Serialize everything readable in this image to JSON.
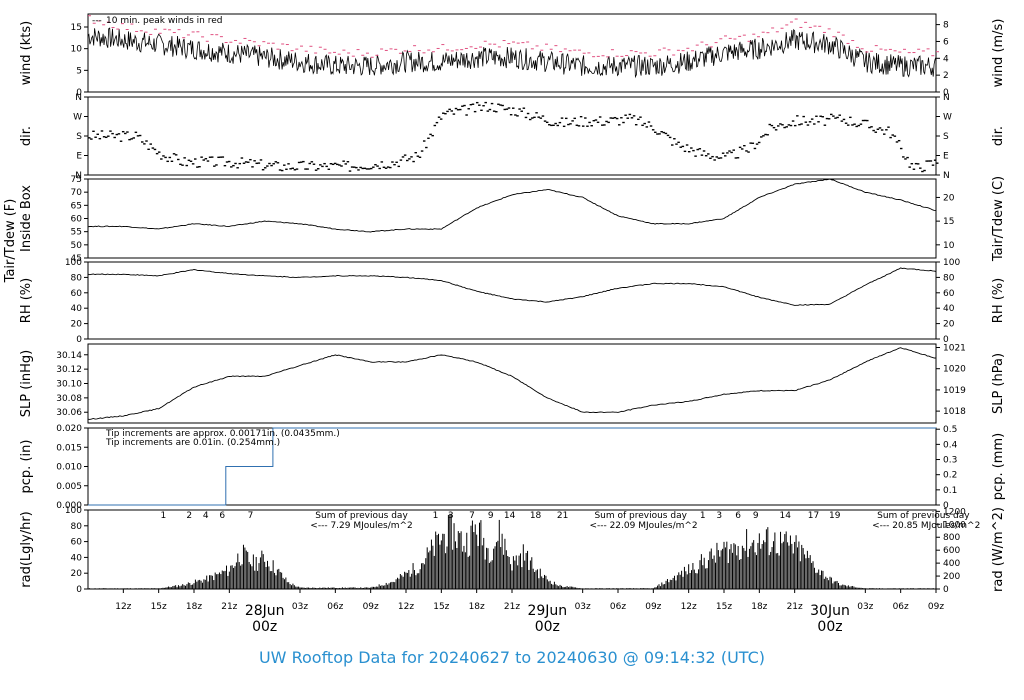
{
  "footer": {
    "title": "UW Rooftop Data for 20240627  to  20240630 @ 09:14:32  (UTC)"
  },
  "colors": {
    "wind": "#000000",
    "peak": "#e05080",
    "pcp_note1": "#d05070",
    "pcp_note2": "#2a90d0",
    "rad_note": "#9a30c8",
    "date_label": "#d05070",
    "footer": "#2a90d0",
    "pcp_line": "#3070b0"
  },
  "x_axis": {
    "tick_labels": [
      "12z",
      "15z",
      "18z",
      "21z",
      "03z",
      "06z",
      "09z",
      "12z",
      "15z",
      "18z",
      "21z",
      "03z",
      "06z",
      "09z",
      "12z",
      "15z",
      "18z",
      "21z",
      "03z",
      "06z",
      "09z"
    ],
    "tick_hours": [
      -9,
      -6,
      -3,
      0,
      6,
      9,
      12,
      15,
      18,
      21,
      24,
      30,
      33,
      36,
      39,
      42,
      45,
      48,
      54,
      57,
      60
    ],
    "day_labels": [
      {
        "date": "28Jun",
        "time": "00z",
        "hour": 3
      },
      {
        "date": "29Jun",
        "time": "00z",
        "hour": 27
      },
      {
        "date": "30Jun",
        "time": "00z",
        "hour": 51
      }
    ],
    "start_hour": -12,
    "end_hour": 60
  },
  "chart_data": [
    {
      "type": "line",
      "id": "wind",
      "ylabel_left": "wind (kts)",
      "ylabel_right": "wind (m/s)",
      "left_ticks": [
        "0",
        "5",
        "10",
        "15"
      ],
      "right_ticks": [
        "0",
        "2",
        "4",
        "6",
        "8"
      ],
      "ylim": [
        0,
        18
      ],
      "legend": "10 min. peak winds in red",
      "series": [
        {
          "name": "wind",
          "x": [
            -12,
            -9,
            -6,
            -3,
            0,
            3,
            6,
            9,
            12,
            15,
            18,
            21,
            24,
            27,
            30,
            33,
            36,
            39,
            42,
            45,
            48,
            51,
            54,
            57,
            60
          ],
          "y": [
            13,
            12,
            11,
            10,
            9,
            8,
            7,
            6,
            6,
            7,
            7,
            8,
            8,
            7,
            6,
            6,
            6,
            7,
            9,
            10,
            12,
            11,
            7,
            6,
            6
          ]
        },
        {
          "name": "peak",
          "x": [
            -12,
            -9,
            -6,
            -3,
            0,
            3,
            6,
            9,
            12,
            15,
            18,
            21,
            24,
            27,
            30,
            33,
            36,
            39,
            42,
            45,
            48,
            51,
            54,
            57,
            60
          ],
          "y": [
            17,
            15,
            14,
            13,
            12,
            11,
            10,
            9,
            9,
            10,
            10,
            11,
            11,
            10,
            9,
            9,
            9,
            10,
            12,
            13,
            16,
            14,
            10,
            9,
            9
          ]
        }
      ]
    },
    {
      "type": "scatter",
      "id": "dir",
      "ylabel_left": "dir.",
      "ylabel_right": "dir.",
      "left_ticks": [
        "N",
        "E",
        "S",
        "W",
        "N"
      ],
      "right_ticks": [
        "N",
        "E",
        "S",
        "W",
        "N"
      ],
      "ylim": [
        0,
        360
      ],
      "series": [
        {
          "name": "dir",
          "x": [
            -12,
            -10,
            -8,
            -6,
            -4,
            -2,
            0,
            2,
            4,
            6,
            8,
            10,
            12,
            14,
            16,
            18,
            20,
            22,
            24,
            26,
            28,
            30,
            32,
            34,
            36,
            38,
            40,
            42,
            44,
            46,
            48,
            50,
            52,
            54,
            56,
            58,
            60
          ],
          "y": [
            180,
            180,
            180,
            100,
            60,
            60,
            60,
            50,
            40,
            40,
            40,
            40,
            50,
            60,
            90,
            280,
            300,
            320,
            300,
            270,
            240,
            250,
            250,
            260,
            220,
            140,
            100,
            80,
            120,
            220,
            250,
            250,
            260,
            230,
            200,
            30,
            60
          ]
        }
      ]
    },
    {
      "type": "line",
      "id": "temp",
      "ylabel_left": "Tair/Tdew (F)",
      "ylabel_left2": "Inside Box",
      "ylabel_right": "Tair/Tdew (C)",
      "left_ticks": [
        "45",
        "50",
        "55",
        "60",
        "65",
        "70",
        "75"
      ],
      "right_ticks": [
        "10",
        "15",
        "20"
      ],
      "ylim": [
        45,
        75
      ],
      "series": [
        {
          "name": "Tair",
          "x": [
            -12,
            -9,
            -6,
            -3,
            0,
            3,
            6,
            9,
            12,
            15,
            18,
            21,
            24,
            27,
            30,
            33,
            36,
            39,
            42,
            45,
            48,
            51,
            54,
            57,
            60
          ],
          "y": [
            57,
            57,
            56,
            58,
            57,
            59,
            58,
            56,
            55,
            56,
            56,
            64,
            69,
            71,
            68,
            61,
            58,
            58,
            60,
            68,
            73,
            75,
            70,
            67,
            63
          ]
        }
      ]
    },
    {
      "type": "line",
      "id": "rh",
      "ylabel_left": "RH (%)",
      "ylabel_right": "RH (%)",
      "left_ticks": [
        "0",
        "20",
        "40",
        "60",
        "80",
        "100"
      ],
      "right_ticks": [
        "0",
        "20",
        "40",
        "60",
        "80",
        "100"
      ],
      "ylim": [
        0,
        100
      ],
      "series": [
        {
          "name": "RH",
          "x": [
            -12,
            -9,
            -6,
            -3,
            0,
            3,
            6,
            9,
            12,
            15,
            18,
            21,
            24,
            27,
            30,
            33,
            36,
            39,
            42,
            45,
            48,
            51,
            54,
            57,
            60
          ],
          "y": [
            84,
            84,
            82,
            90,
            85,
            82,
            80,
            82,
            82,
            80,
            76,
            62,
            52,
            48,
            55,
            66,
            72,
            72,
            68,
            54,
            44,
            45,
            70,
            92,
            88
          ]
        }
      ]
    },
    {
      "type": "line",
      "id": "slp",
      "ylabel_left": "SLP (inHg)",
      "ylabel_right": "SLP (hPa)",
      "left_ticks": [
        "30.06",
        "30.08",
        "30.10",
        "30.12",
        "30.14"
      ],
      "right_ticks": [
        "1018",
        "1019",
        "1020",
        "1021"
      ],
      "ylim": [
        30.045,
        30.155
      ],
      "series": [
        {
          "name": "SLP",
          "x": [
            -12,
            -9,
            -6,
            -3,
            0,
            3,
            6,
            9,
            12,
            15,
            18,
            21,
            24,
            27,
            30,
            33,
            36,
            39,
            42,
            45,
            48,
            51,
            54,
            57,
            60
          ],
          "y": [
            30.05,
            30.055,
            30.065,
            30.095,
            30.11,
            30.11,
            30.125,
            30.14,
            30.13,
            30.13,
            30.14,
            30.13,
            30.11,
            30.08,
            30.06,
            30.06,
            30.07,
            30.075,
            30.085,
            30.09,
            30.09,
            30.105,
            30.13,
            30.15,
            30.135
          ]
        }
      ]
    },
    {
      "type": "line",
      "id": "pcp",
      "ylabel_left": "pcp. (in)",
      "ylabel_right": "pcp. (mm)",
      "left_ticks": [
        "0.000",
        "0.005",
        "0.010",
        "0.015",
        "0.020"
      ],
      "right_ticks": [
        "0",
        "0.1",
        "0.2",
        "0.3",
        "0.4",
        "0.5"
      ],
      "ylim": [
        0,
        0.02
      ],
      "notes": [
        "Tip increments are approx. 0.00171in. (0.0435mm.)",
        "Tip increments are 0.01in. (0.254mm.)"
      ],
      "series": [
        {
          "name": "pcp",
          "x": [
            -12,
            -0.3,
            -0.3,
            3.7,
            3.7,
            60
          ],
          "y": [
            0,
            0,
            0.01,
            0.01,
            0.02,
            0.02
          ]
        }
      ]
    },
    {
      "type": "bar",
      "id": "rad",
      "ylabel_left": "rad(Lgly/hr)",
      "ylabel_right": "rad (W/m^2)",
      "left_ticks": [
        "0",
        "20",
        "40",
        "60",
        "80",
        "100"
      ],
      "right_ticks": [
        "0",
        "200",
        "400",
        "600",
        "800",
        "1000",
        "1200"
      ],
      "ylim": [
        0,
        105
      ],
      "hour_marks": [
        "1",
        "2",
        "4",
        "6",
        "7",
        "1",
        "3",
        "7",
        "9",
        "14",
        "18",
        "21",
        "1",
        "3",
        "6",
        "9",
        "14",
        "17",
        "19"
      ],
      "hour_mark_x": [
        -5.6,
        -3.4,
        -2.0,
        -0.6,
        1.8,
        17.5,
        18.8,
        20.6,
        22.2,
        23.8,
        26,
        28.3,
        40.2,
        41.6,
        43.2,
        44.7,
        47.2,
        49.6,
        51.4
      ],
      "sums": [
        {
          "text1": "Sum of previous day",
          "text2": "<--- 7.29 MJoules/m^2",
          "hour": 7.3
        },
        {
          "text1": "Sum of previous day",
          "text2": "<--- 22.09 MJoules/m^2",
          "hour": 31
        },
        {
          "text1": "Sum of previous day",
          "text2": "<--- 20.85 MJoules/m^2",
          "hour": 55
        }
      ],
      "x": [
        -6,
        -4,
        -2,
        -1,
        0,
        1,
        2,
        3,
        4,
        5,
        6,
        12,
        14,
        16,
        17,
        18,
        19,
        20,
        21,
        22,
        23,
        24,
        25,
        26,
        27,
        28,
        30,
        36,
        38,
        40,
        41,
        42,
        43,
        44,
        45,
        46,
        47,
        48,
        49,
        50,
        51,
        52,
        54
      ],
      "values": [
        1,
        6,
        15,
        22,
        30,
        55,
        40,
        48,
        30,
        10,
        2,
        2,
        12,
        35,
        55,
        80,
        90,
        70,
        95,
        60,
        85,
        40,
        55,
        30,
        15,
        5,
        1,
        1,
        20,
        40,
        50,
        60,
        65,
        70,
        72,
        75,
        70,
        65,
        50,
        30,
        15,
        6,
        1
      ]
    }
  ]
}
